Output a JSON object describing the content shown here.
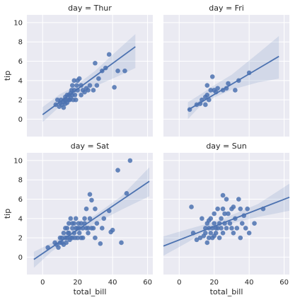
{
  "chart_data": {
    "type": "scatter",
    "xlabel": "total_bill",
    "ylabel": "tip",
    "xlim": [
      -9,
      63
    ],
    "ylim": [
      -1.8,
      10.8
    ],
    "xticks": [
      0,
      20,
      40,
      60
    ],
    "yticks": [
      0,
      2,
      4,
      6,
      8,
      10
    ],
    "facets": [
      {
        "title": "day = Thur",
        "fit": {
          "x": [
            0,
            53
          ],
          "y": [
            0.47,
            7.5
          ]
        },
        "ci": {
          "x": [
            0,
            10,
            18,
            30,
            45,
            53
          ],
          "lower": [
            -0.3,
            1.35,
            2.35,
            3.4,
            4.6,
            5.3
          ],
          "upper": [
            1.25,
            2.6,
            3.35,
            5.0,
            7.5,
            8.8
          ]
        },
        "points": [
          [
            7.5,
            1.5
          ],
          [
            8.5,
            2.0
          ],
          [
            9.5,
            1.3
          ],
          [
            10,
            1.7
          ],
          [
            10.5,
            2.0
          ],
          [
            11,
            1.5
          ],
          [
            12,
            1.8
          ],
          [
            12,
            1.2
          ],
          [
            12.5,
            2.0
          ],
          [
            13,
            1.6
          ],
          [
            13,
            2.3
          ],
          [
            13.5,
            2.0
          ],
          [
            14,
            2.5
          ],
          [
            14,
            1.7
          ],
          [
            15,
            2.0
          ],
          [
            15,
            2.5
          ],
          [
            15.5,
            2.0
          ],
          [
            16,
            2.2
          ],
          [
            16,
            2.7
          ],
          [
            16.5,
            3.0
          ],
          [
            17,
            2.5
          ],
          [
            17,
            3.5
          ],
          [
            17.5,
            2.0
          ],
          [
            18,
            4.0
          ],
          [
            18,
            3.0
          ],
          [
            18.5,
            2.5
          ],
          [
            19,
            2.0
          ],
          [
            19.5,
            3.5
          ],
          [
            20,
            4.0
          ],
          [
            20,
            3.0
          ],
          [
            21,
            4.2
          ],
          [
            22,
            3.5
          ],
          [
            22,
            2.5
          ],
          [
            23,
            3.0
          ],
          [
            24,
            2.8
          ],
          [
            25,
            3.2
          ],
          [
            26,
            3.0
          ],
          [
            27,
            3.5
          ],
          [
            29,
            3.0
          ],
          [
            30,
            5.8
          ],
          [
            31,
            3.5
          ],
          [
            32,
            4.2
          ],
          [
            34,
            5.0
          ],
          [
            36,
            5.3
          ],
          [
            38,
            6.7
          ],
          [
            41,
            3.3
          ],
          [
            43,
            5.0
          ],
          [
            47,
            5.0
          ]
        ]
      },
      {
        "title": "day = Fri",
        "fit": {
          "x": [
            5,
            57
          ],
          "y": [
            0.95,
            6.5
          ]
        },
        "ci": {
          "x": [
            5,
            12,
            20,
            30,
            45,
            57
          ],
          "lower": [
            0.0,
            1.35,
            2.25,
            3.05,
            3.8,
            4.2
          ],
          "upper": [
            1.75,
            2.55,
            3.5,
            4.6,
            6.8,
            8.6
          ]
        },
        "points": [
          [
            6,
            1.0
          ],
          [
            10,
            1.5
          ],
          [
            12,
            1.6
          ],
          [
            13,
            2.0
          ],
          [
            15,
            1.5
          ],
          [
            15,
            2.3
          ],
          [
            16,
            2.5
          ],
          [
            16,
            3.5
          ],
          [
            17,
            2.0
          ],
          [
            18,
            3.0
          ],
          [
            19,
            4.4
          ],
          [
            20,
            3.0
          ],
          [
            21,
            2.8
          ],
          [
            22,
            3.2
          ],
          [
            25,
            3.0
          ],
          [
            27,
            3.2
          ],
          [
            28,
            3.7
          ],
          [
            32,
            3.0
          ],
          [
            34,
            4.0
          ],
          [
            40,
            4.8
          ]
        ]
      },
      {
        "title": "day = Sat",
        "fit": {
          "x": [
            -5,
            61
          ],
          "y": [
            -0.23,
            7.85
          ]
        },
        "ci": {
          "x": [
            -5,
            5,
            15,
            20,
            30,
            45,
            61
          ],
          "lower": [
            -1.1,
            0.55,
            1.9,
            2.45,
            3.5,
            4.9,
            6.3
          ],
          "upper": [
            0.55,
            1.45,
            2.6,
            3.2,
            4.35,
            6.3,
            9.3
          ]
        },
        "points": [
          [
            3,
            1.0
          ],
          [
            7,
            1.5
          ],
          [
            8,
            1.3
          ],
          [
            9,
            1.0
          ],
          [
            10,
            2.0
          ],
          [
            10,
            1.5
          ],
          [
            11,
            1.5
          ],
          [
            11,
            2.0
          ],
          [
            12,
            1.3
          ],
          [
            12,
            2.5
          ],
          [
            13,
            2.0
          ],
          [
            13,
            3.0
          ],
          [
            13.5,
            1.5
          ],
          [
            14,
            2.0
          ],
          [
            14,
            3.0
          ],
          [
            14.5,
            2.5
          ],
          [
            15,
            2.5
          ],
          [
            15,
            3.5
          ],
          [
            15.5,
            1.8
          ],
          [
            16,
            2.0
          ],
          [
            16,
            4.0
          ],
          [
            17,
            2.0
          ],
          [
            17,
            3.0
          ],
          [
            17,
            3.5
          ],
          [
            18,
            2.5
          ],
          [
            18,
            3.5
          ],
          [
            18.5,
            2.0
          ],
          [
            19,
            3.0
          ],
          [
            19,
            4.0
          ],
          [
            20,
            3.0
          ],
          [
            20,
            2.0
          ],
          [
            20.5,
            3.5
          ],
          [
            21,
            2.5
          ],
          [
            21,
            3.0
          ],
          [
            22,
            2.0
          ],
          [
            22,
            3.5
          ],
          [
            23,
            3.0
          ],
          [
            23,
            2.0
          ],
          [
            24,
            3.5
          ],
          [
            24,
            4.0
          ],
          [
            25,
            3.0
          ],
          [
            25,
            5.0
          ],
          [
            26,
            3.0
          ],
          [
            26,
            2.5
          ],
          [
            27,
            6.5
          ],
          [
            27,
            4.0
          ],
          [
            28,
            5.9
          ],
          [
            28,
            3.0
          ],
          [
            29,
            3.0
          ],
          [
            30,
            2.0
          ],
          [
            30,
            5.0
          ],
          [
            31,
            3.5
          ],
          [
            33,
            1.4
          ],
          [
            34,
            3.0
          ],
          [
            35,
            4.0
          ],
          [
            38,
            4.8
          ],
          [
            39,
            2.6
          ],
          [
            40,
            2.8
          ],
          [
            43,
            9.0
          ],
          [
            45,
            1.5
          ],
          [
            48,
            6.6
          ],
          [
            50,
            10.0
          ]
        ]
      },
      {
        "title": "day = Sun",
        "fit": {
          "x": [
            -9,
            63
          ],
          "y": [
            1.15,
            6.2
          ]
        },
        "ci": {
          "x": [
            -9,
            5,
            15,
            22,
            30,
            45,
            63
          ],
          "lower": [
            0.15,
            1.55,
            2.7,
            3.05,
            3.5,
            4.15,
            4.8
          ],
          "upper": [
            2.15,
            2.9,
            3.4,
            3.75,
            4.35,
            5.5,
            7.6
          ]
        },
        "points": [
          [
            7,
            5.2
          ],
          [
            8,
            2.5
          ],
          [
            10,
            1.8
          ],
          [
            12,
            2.0
          ],
          [
            13,
            4.0
          ],
          [
            14,
            2.2
          ],
          [
            15,
            3.0
          ],
          [
            15,
            2.5
          ],
          [
            16,
            1.5
          ],
          [
            16,
            3.5
          ],
          [
            17,
            2.0
          ],
          [
            17,
            3.0
          ],
          [
            17,
            3.8
          ],
          [
            18,
            2.5
          ],
          [
            18,
            4.0
          ],
          [
            19,
            2.0
          ],
          [
            19,
            3.0
          ],
          [
            20,
            3.5
          ],
          [
            20,
            2.2
          ],
          [
            20,
            4.5
          ],
          [
            21,
            3.0
          ],
          [
            21,
            2.5
          ],
          [
            22,
            5.0
          ],
          [
            22,
            3.0
          ],
          [
            23,
            3.5
          ],
          [
            23,
            2.0
          ],
          [
            24,
            4.0
          ],
          [
            24,
            3.0
          ],
          [
            25,
            6.4
          ],
          [
            25,
            5.0
          ],
          [
            25,
            2.5
          ],
          [
            26,
            4.5
          ],
          [
            26,
            3.5
          ],
          [
            27,
            3.0
          ],
          [
            27,
            6.0
          ],
          [
            28,
            4.5
          ],
          [
            29,
            3.5
          ],
          [
            30,
            3.0
          ],
          [
            30,
            5.0
          ],
          [
            31,
            2.5
          ],
          [
            31,
            5.2
          ],
          [
            32,
            4.0
          ],
          [
            33,
            3.0
          ],
          [
            34,
            6.0
          ],
          [
            35,
            5.0
          ],
          [
            35,
            2.0
          ],
          [
            36,
            3.5
          ],
          [
            37,
            4.3
          ],
          [
            38,
            3.0
          ],
          [
            39,
            5.0
          ],
          [
            40,
            2.5
          ],
          [
            43,
            3.5
          ],
          [
            48,
            5.0
          ]
        ]
      }
    ]
  }
}
